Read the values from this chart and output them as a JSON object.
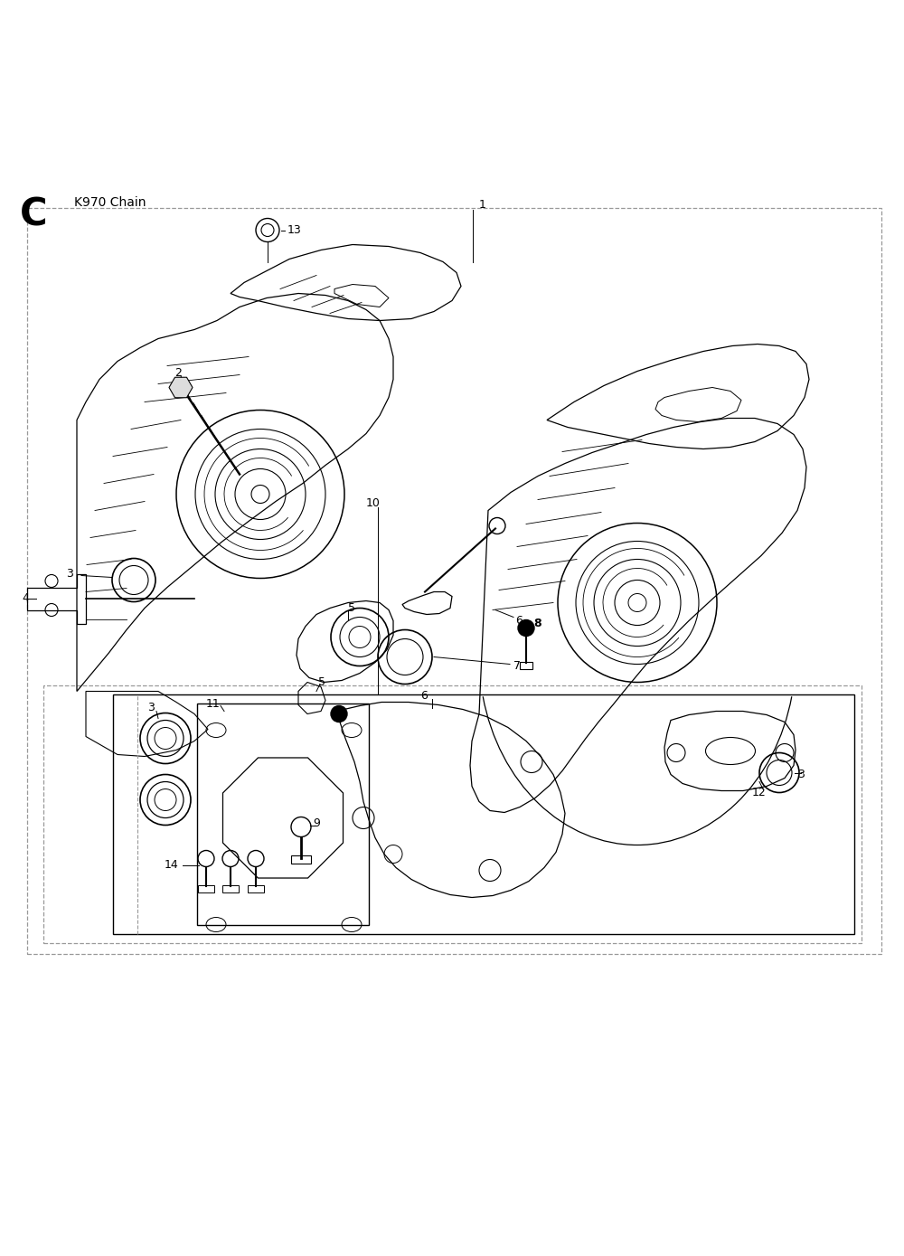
{
  "title": "K970 Chain",
  "title_letter": "C",
  "bg_color": "#ffffff",
  "line_color": "#000000",
  "dashed_box_color": "#999999",
  "fig_width": 10.0,
  "fig_height": 13.89,
  "dpi": 100
}
